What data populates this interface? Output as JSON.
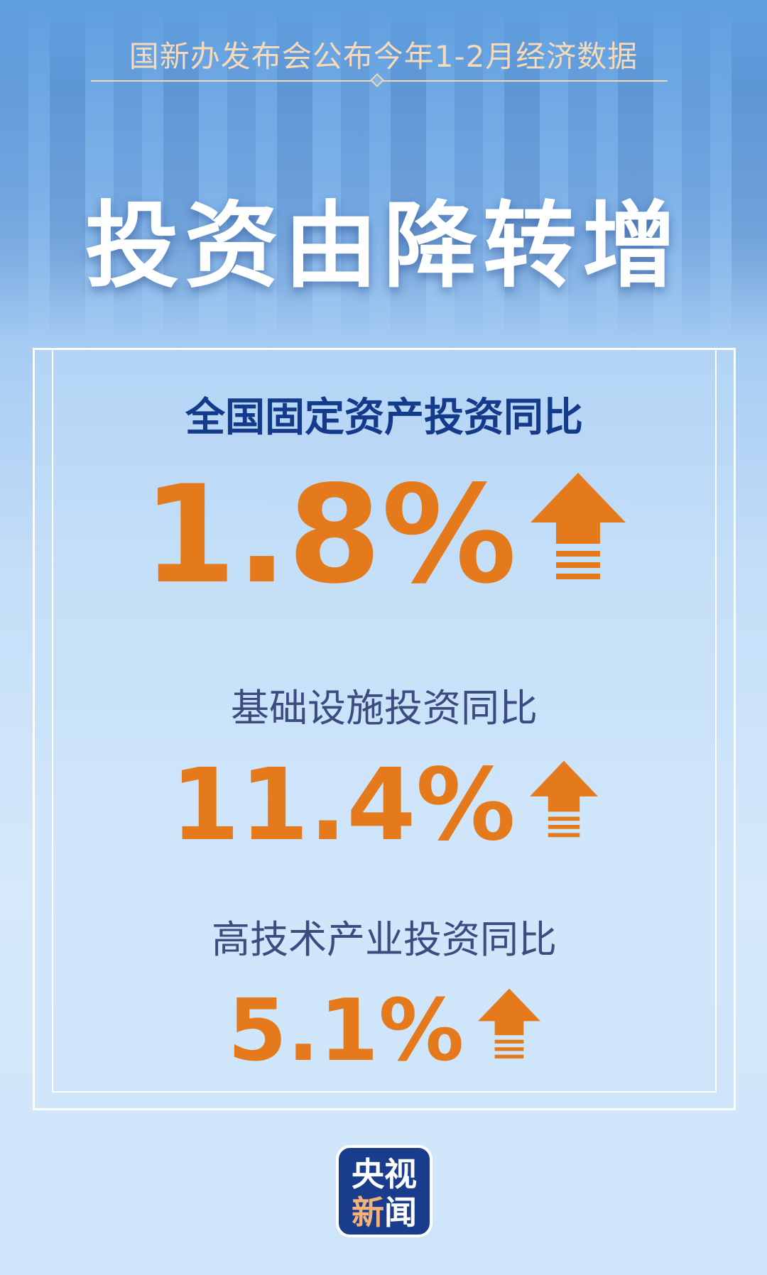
{
  "header": {
    "subtitle": "国新办发布会公布今年1-2月经济数据",
    "title": "投资由降转增"
  },
  "stats": [
    {
      "label": "全国固定资产投资同比",
      "value": "1.8%",
      "trend": "up"
    },
    {
      "label": "基础设施投资同比",
      "value": "11.4%",
      "trend": "up"
    },
    {
      "label": "高技术产业投资同比",
      "value": "5.1%",
      "trend": "up"
    }
  ],
  "logo": {
    "line1": "央视",
    "line2a": "新",
    "line2b": "闻"
  },
  "colors": {
    "accent": "#e57a1c",
    "title_blue": "#143a8a",
    "logo_bg": "#1a3c8c"
  }
}
